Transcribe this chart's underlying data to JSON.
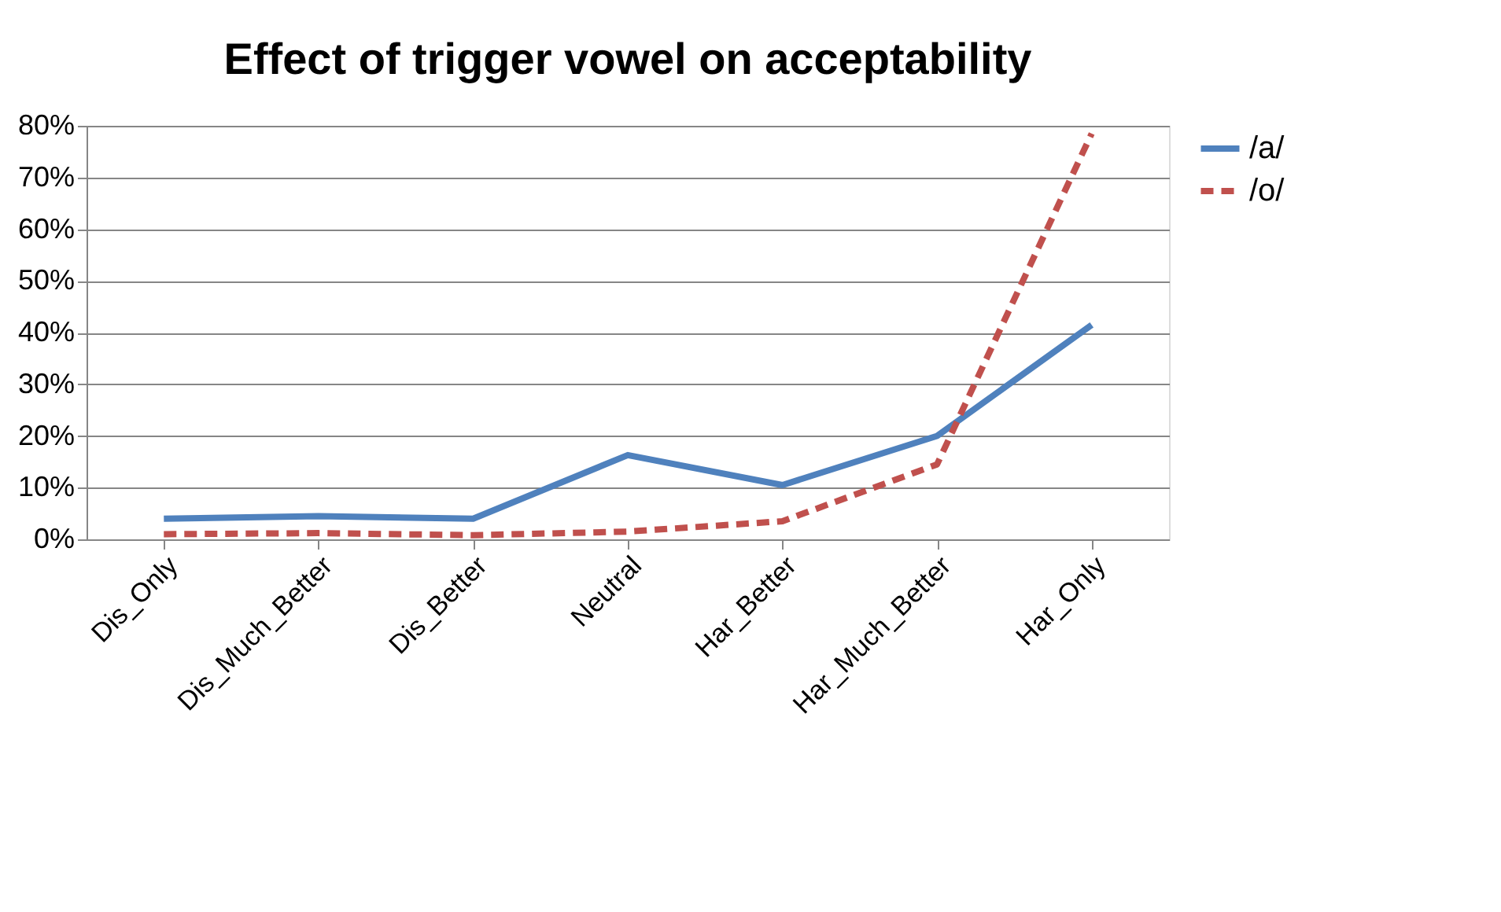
{
  "chart_data": {
    "type": "line",
    "title": "Effect of trigger vowel on acceptability",
    "categories": [
      "Dis_Only",
      "Dis_Much_Better",
      "Dis_Better",
      "Neutral",
      "Har_Better",
      "Har_Much_Better",
      "Har_Only"
    ],
    "series": [
      {
        "name": "/a/",
        "color": "#4f81bd",
        "line_style": "solid",
        "values": [
          4,
          4.5,
          4,
          16.3,
          10.5,
          20,
          41.5
        ]
      },
      {
        "name": "/o/",
        "color": "#c0504d",
        "line_style": "dashed",
        "values": [
          1,
          1.2,
          0.8,
          1.5,
          3.5,
          14.5,
          78.5
        ]
      }
    ],
    "ylim": [
      0,
      80
    ],
    "yticks": [
      {
        "value": 0,
        "label": "0%"
      },
      {
        "value": 10,
        "label": "10%"
      },
      {
        "value": 20,
        "label": "20%"
      },
      {
        "value": 30,
        "label": "30%"
      },
      {
        "value": 40,
        "label": "40%"
      },
      {
        "value": 50,
        "label": "50%"
      },
      {
        "value": 60,
        "label": "60%"
      },
      {
        "value": 70,
        "label": "70%"
      },
      {
        "value": 80,
        "label": "80%"
      }
    ],
    "grid": "y",
    "legend": "right",
    "marker": "none"
  }
}
